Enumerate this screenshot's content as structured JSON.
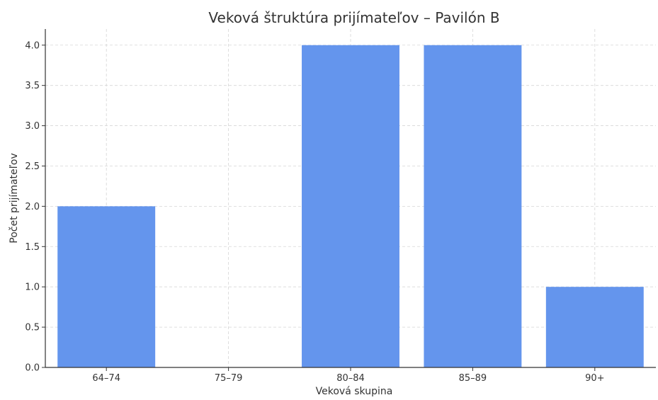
{
  "chart_data": {
    "type": "bar",
    "title": "Veková štruktúra prijímateľov – Pavilón B",
    "xlabel": "Veková skupina",
    "ylabel": "Počet prijímateľov",
    "categories": [
      "64–74",
      "75–79",
      "80–84",
      "85–89",
      "90+"
    ],
    "values": [
      2,
      0,
      4,
      4,
      1
    ],
    "ylim": [
      0,
      4.2
    ],
    "yticks": [
      "0.0",
      "0.5",
      "1.0",
      "1.5",
      "2.0",
      "2.5",
      "3.0",
      "3.5",
      "4.0"
    ],
    "grid": true,
    "bar_color": "#6495ED"
  }
}
